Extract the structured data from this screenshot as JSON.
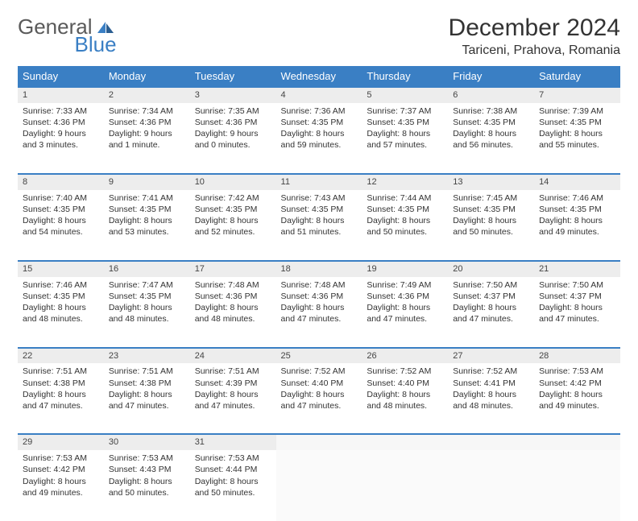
{
  "logo": {
    "text1": "General",
    "text2": "Blue"
  },
  "title": "December 2024",
  "location": "Tariceni, Prahova, Romania",
  "weekdays": [
    "Sunday",
    "Monday",
    "Tuesday",
    "Wednesday",
    "Thursday",
    "Friday",
    "Saturday"
  ],
  "colors": {
    "header_bg": "#3a7fc4",
    "header_text": "#ffffff",
    "daynum_bg": "#ededed",
    "row_divider": "#3a7fc4",
    "logo_gray": "#5a5a5a",
    "logo_blue": "#3a7fc4"
  },
  "weeks": [
    [
      {
        "n": "1",
        "sunrise": "7:33 AM",
        "sunset": "4:36 PM",
        "daylight": "9 hours and 3 minutes."
      },
      {
        "n": "2",
        "sunrise": "7:34 AM",
        "sunset": "4:36 PM",
        "daylight": "9 hours and 1 minute."
      },
      {
        "n": "3",
        "sunrise": "7:35 AM",
        "sunset": "4:36 PM",
        "daylight": "9 hours and 0 minutes."
      },
      {
        "n": "4",
        "sunrise": "7:36 AM",
        "sunset": "4:35 PM",
        "daylight": "8 hours and 59 minutes."
      },
      {
        "n": "5",
        "sunrise": "7:37 AM",
        "sunset": "4:35 PM",
        "daylight": "8 hours and 57 minutes."
      },
      {
        "n": "6",
        "sunrise": "7:38 AM",
        "sunset": "4:35 PM",
        "daylight": "8 hours and 56 minutes."
      },
      {
        "n": "7",
        "sunrise": "7:39 AM",
        "sunset": "4:35 PM",
        "daylight": "8 hours and 55 minutes."
      }
    ],
    [
      {
        "n": "8",
        "sunrise": "7:40 AM",
        "sunset": "4:35 PM",
        "daylight": "8 hours and 54 minutes."
      },
      {
        "n": "9",
        "sunrise": "7:41 AM",
        "sunset": "4:35 PM",
        "daylight": "8 hours and 53 minutes."
      },
      {
        "n": "10",
        "sunrise": "7:42 AM",
        "sunset": "4:35 PM",
        "daylight": "8 hours and 52 minutes."
      },
      {
        "n": "11",
        "sunrise": "7:43 AM",
        "sunset": "4:35 PM",
        "daylight": "8 hours and 51 minutes."
      },
      {
        "n": "12",
        "sunrise": "7:44 AM",
        "sunset": "4:35 PM",
        "daylight": "8 hours and 50 minutes."
      },
      {
        "n": "13",
        "sunrise": "7:45 AM",
        "sunset": "4:35 PM",
        "daylight": "8 hours and 50 minutes."
      },
      {
        "n": "14",
        "sunrise": "7:46 AM",
        "sunset": "4:35 PM",
        "daylight": "8 hours and 49 minutes."
      }
    ],
    [
      {
        "n": "15",
        "sunrise": "7:46 AM",
        "sunset": "4:35 PM",
        "daylight": "8 hours and 48 minutes."
      },
      {
        "n": "16",
        "sunrise": "7:47 AM",
        "sunset": "4:35 PM",
        "daylight": "8 hours and 48 minutes."
      },
      {
        "n": "17",
        "sunrise": "7:48 AM",
        "sunset": "4:36 PM",
        "daylight": "8 hours and 48 minutes."
      },
      {
        "n": "18",
        "sunrise": "7:48 AM",
        "sunset": "4:36 PM",
        "daylight": "8 hours and 47 minutes."
      },
      {
        "n": "19",
        "sunrise": "7:49 AM",
        "sunset": "4:36 PM",
        "daylight": "8 hours and 47 minutes."
      },
      {
        "n": "20",
        "sunrise": "7:50 AM",
        "sunset": "4:37 PM",
        "daylight": "8 hours and 47 minutes."
      },
      {
        "n": "21",
        "sunrise": "7:50 AM",
        "sunset": "4:37 PM",
        "daylight": "8 hours and 47 minutes."
      }
    ],
    [
      {
        "n": "22",
        "sunrise": "7:51 AM",
        "sunset": "4:38 PM",
        "daylight": "8 hours and 47 minutes."
      },
      {
        "n": "23",
        "sunrise": "7:51 AM",
        "sunset": "4:38 PM",
        "daylight": "8 hours and 47 minutes."
      },
      {
        "n": "24",
        "sunrise": "7:51 AM",
        "sunset": "4:39 PM",
        "daylight": "8 hours and 47 minutes."
      },
      {
        "n": "25",
        "sunrise": "7:52 AM",
        "sunset": "4:40 PM",
        "daylight": "8 hours and 47 minutes."
      },
      {
        "n": "26",
        "sunrise": "7:52 AM",
        "sunset": "4:40 PM",
        "daylight": "8 hours and 48 minutes."
      },
      {
        "n": "27",
        "sunrise": "7:52 AM",
        "sunset": "4:41 PM",
        "daylight": "8 hours and 48 minutes."
      },
      {
        "n": "28",
        "sunrise": "7:53 AM",
        "sunset": "4:42 PM",
        "daylight": "8 hours and 49 minutes."
      }
    ],
    [
      {
        "n": "29",
        "sunrise": "7:53 AM",
        "sunset": "4:42 PM",
        "daylight": "8 hours and 49 minutes."
      },
      {
        "n": "30",
        "sunrise": "7:53 AM",
        "sunset": "4:43 PM",
        "daylight": "8 hours and 50 minutes."
      },
      {
        "n": "31",
        "sunrise": "7:53 AM",
        "sunset": "4:44 PM",
        "daylight": "8 hours and 50 minutes."
      },
      null,
      null,
      null,
      null
    ]
  ],
  "labels": {
    "sunrise": "Sunrise: ",
    "sunset": "Sunset: ",
    "daylight": "Daylight: "
  }
}
